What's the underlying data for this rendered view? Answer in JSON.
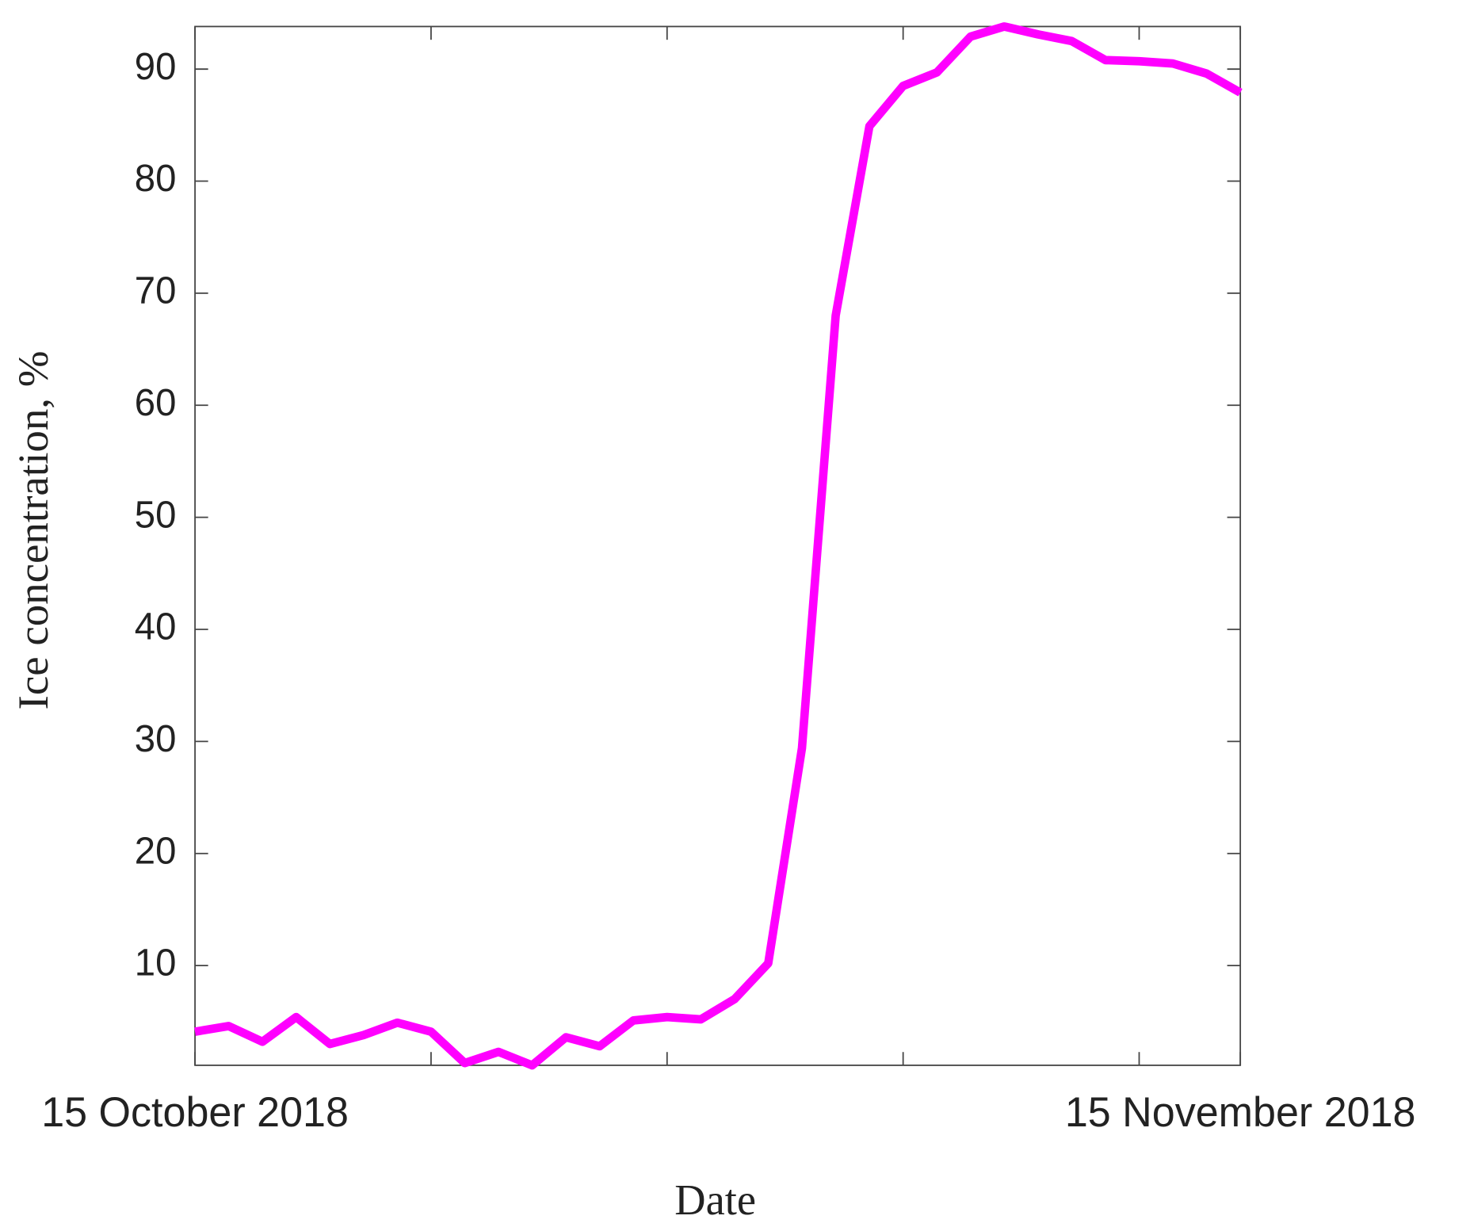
{
  "chart_data": {
    "type": "line",
    "xlabel": "Date",
    "ylabel": "Ice concentration, %",
    "x": [
      "2018-10-15",
      "2018-10-16",
      "2018-10-17",
      "2018-10-18",
      "2018-10-19",
      "2018-10-20",
      "2018-10-21",
      "2018-10-22",
      "2018-10-23",
      "2018-10-24",
      "2018-10-25",
      "2018-10-26",
      "2018-10-27",
      "2018-10-28",
      "2018-10-29",
      "2018-10-30",
      "2018-10-31",
      "2018-11-01",
      "2018-11-02",
      "2018-11-03",
      "2018-11-04",
      "2018-11-05",
      "2018-11-06",
      "2018-11-07",
      "2018-11-08",
      "2018-11-09",
      "2018-11-10",
      "2018-11-11",
      "2018-11-12",
      "2018-11-13",
      "2018-11-14",
      "2018-11-15"
    ],
    "series": [
      {
        "color": "#ff00ff",
        "values": [
          4.1,
          4.6,
          3.2,
          5.4,
          3.0,
          3.8,
          4.9,
          4.1,
          1.3,
          2.3,
          1.1,
          3.6,
          2.8,
          5.1,
          5.4,
          5.2,
          7.0,
          10.2,
          29.4,
          68.0,
          84.9,
          88.5,
          89.7,
          92.9,
          93.8,
          93.1,
          92.5,
          90.8,
          90.7,
          90.5,
          89.6,
          87.9
        ]
      }
    ],
    "xlim": [
      "2018-10-15",
      "2018-11-15"
    ],
    "xticks": [
      {
        "value": "2018-10-15",
        "label": "15 October 2018"
      },
      "2018-10-22",
      "2018-10-29",
      "2018-11-05",
      "2018-11-12",
      {
        "value": "2018-11-15",
        "label": "15 November 2018"
      }
    ],
    "ylim": [
      1.1,
      93.8
    ],
    "yticks": [
      10,
      20,
      30,
      40,
      50,
      60,
      70,
      80,
      90
    ]
  }
}
